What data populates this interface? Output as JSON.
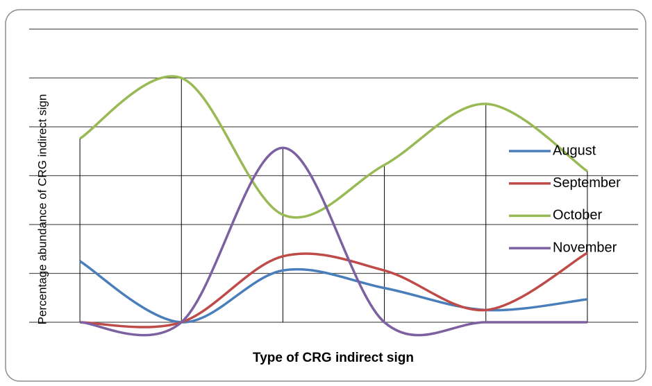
{
  "chart_data": {
    "type": "line",
    "x_label": "Type of CRG indirect sign",
    "y_label": "Percentage abundance of CRG indirect sign",
    "categories": [
      null,
      null,
      null,
      null,
      null,
      null
    ],
    "series": [
      {
        "name": "August",
        "color": "#4a7ebb",
        "values": [
          1.25,
          0,
          1.06,
          0.7,
          0.25,
          0.47
        ]
      },
      {
        "name": "September",
        "color": "#be4b48",
        "values": [
          0,
          0,
          1.35,
          1.06,
          0.25,
          1.42
        ]
      },
      {
        "name": "October",
        "color": "#98b954",
        "values": [
          3.76,
          5.0,
          2.2,
          3.22,
          4.47,
          3.09
        ]
      },
      {
        "name": "November",
        "color": "#7d60a0",
        "values": [
          0,
          0,
          3.57,
          0,
          0,
          0
        ]
      }
    ],
    "ylim": [
      0,
      6
    ],
    "yticks": [
      0,
      1,
      2,
      3,
      4,
      5,
      6
    ],
    "grid": true,
    "smooth": true,
    "drop_lines": true,
    "legend": "right"
  }
}
